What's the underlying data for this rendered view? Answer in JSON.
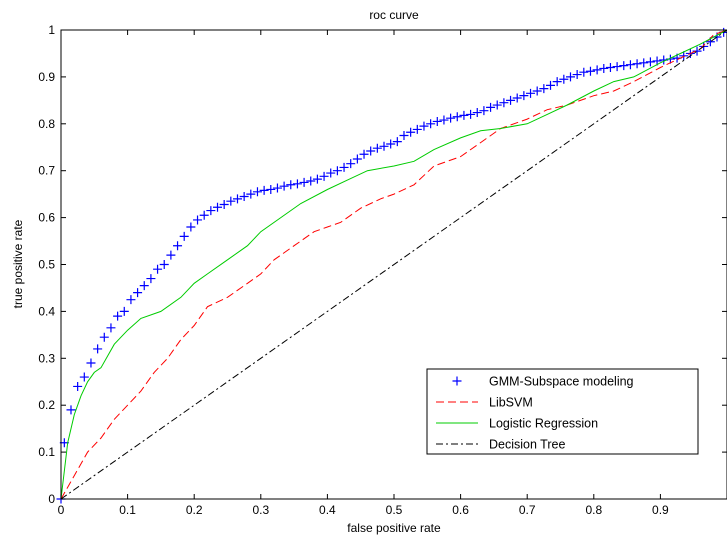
{
  "chart_data": {
    "type": "line",
    "title": "roc curve",
    "xlabel": "false positive rate",
    "ylabel": "true positive rate",
    "xlim": [
      0,
      1
    ],
    "ylim": [
      0,
      1
    ],
    "xticks": [
      "0",
      "0.1",
      "0.2",
      "0.3",
      "0.4",
      "0.5",
      "0.6",
      "0.7",
      "0.8",
      "0.9"
    ],
    "yticks": [
      "0",
      "0.1",
      "0.2",
      "0.3",
      "0.4",
      "0.5",
      "0.6",
      "0.7",
      "0.8",
      "0.9",
      "1"
    ],
    "grid": false,
    "legend_position": "bottom-right",
    "series": [
      {
        "name": "GMM-Subspace modeling",
        "color": "#0000ff",
        "marker": "plus",
        "line": "none",
        "x": [
          0,
          0.005,
          0.015,
          0.025,
          0.035,
          0.045,
          0.055,
          0.065,
          0.075,
          0.085,
          0.095,
          0.105,
          0.115,
          0.125,
          0.135,
          0.145,
          0.155,
          0.165,
          0.175,
          0.185,
          0.195,
          0.205,
          0.215,
          0.225,
          0.235,
          0.245,
          0.255,
          0.265,
          0.275,
          0.285,
          0.295,
          0.305,
          0.315,
          0.325,
          0.335,
          0.345,
          0.355,
          0.365,
          0.375,
          0.385,
          0.395,
          0.405,
          0.415,
          0.425,
          0.435,
          0.445,
          0.455,
          0.465,
          0.475,
          0.485,
          0.495,
          0.505,
          0.515,
          0.525,
          0.535,
          0.545,
          0.555,
          0.565,
          0.575,
          0.585,
          0.595,
          0.605,
          0.615,
          0.625,
          0.635,
          0.645,
          0.655,
          0.665,
          0.675,
          0.685,
          0.695,
          0.705,
          0.715,
          0.725,
          0.735,
          0.745,
          0.755,
          0.765,
          0.775,
          0.785,
          0.795,
          0.805,
          0.815,
          0.825,
          0.835,
          0.845,
          0.855,
          0.865,
          0.875,
          0.885,
          0.895,
          0.905,
          0.915,
          0.925,
          0.935,
          0.945,
          0.955,
          0.965,
          0.975,
          0.985,
          0.995
        ],
        "y": [
          0,
          0.12,
          0.19,
          0.24,
          0.26,
          0.29,
          0.32,
          0.345,
          0.365,
          0.39,
          0.4,
          0.425,
          0.44,
          0.455,
          0.47,
          0.49,
          0.5,
          0.52,
          0.54,
          0.56,
          0.58,
          0.595,
          0.605,
          0.615,
          0.622,
          0.628,
          0.635,
          0.64,
          0.645,
          0.65,
          0.655,
          0.658,
          0.66,
          0.663,
          0.667,
          0.67,
          0.672,
          0.675,
          0.678,
          0.682,
          0.688,
          0.695,
          0.7,
          0.707,
          0.715,
          0.725,
          0.735,
          0.742,
          0.748,
          0.752,
          0.757,
          0.762,
          0.775,
          0.782,
          0.788,
          0.795,
          0.8,
          0.805,
          0.808,
          0.812,
          0.815,
          0.818,
          0.82,
          0.824,
          0.828,
          0.835,
          0.84,
          0.845,
          0.85,
          0.855,
          0.86,
          0.865,
          0.87,
          0.875,
          0.882,
          0.89,
          0.895,
          0.9,
          0.905,
          0.91,
          0.912,
          0.915,
          0.918,
          0.92,
          0.922,
          0.924,
          0.926,
          0.928,
          0.93,
          0.932,
          0.934,
          0.936,
          0.938,
          0.94,
          0.945,
          0.95,
          0.955,
          0.965,
          0.975,
          0.985,
          0.995
        ]
      },
      {
        "name": "LibSVM",
        "color": "#ff0000",
        "dash": "dashed",
        "x": [
          0,
          0.02,
          0.04,
          0.06,
          0.08,
          0.1,
          0.12,
          0.14,
          0.16,
          0.18,
          0.2,
          0.22,
          0.25,
          0.28,
          0.3,
          0.32,
          0.35,
          0.38,
          0.4,
          0.42,
          0.45,
          0.48,
          0.5,
          0.53,
          0.56,
          0.6,
          0.63,
          0.66,
          0.7,
          0.73,
          0.76,
          0.8,
          0.83,
          0.86,
          0.9,
          0.93,
          0.96,
          0.98,
          1.0
        ],
        "y": [
          0,
          0.05,
          0.1,
          0.13,
          0.17,
          0.2,
          0.23,
          0.27,
          0.3,
          0.34,
          0.37,
          0.41,
          0.43,
          0.46,
          0.48,
          0.51,
          0.54,
          0.57,
          0.58,
          0.59,
          0.62,
          0.64,
          0.65,
          0.67,
          0.71,
          0.73,
          0.76,
          0.79,
          0.81,
          0.83,
          0.84,
          0.86,
          0.87,
          0.89,
          0.92,
          0.94,
          0.96,
          0.99,
          1.0
        ]
      },
      {
        "name": "Logistic Regression",
        "color": "#00cc00",
        "dash": "solid",
        "x": [
          0,
          0.01,
          0.02,
          0.03,
          0.04,
          0.05,
          0.06,
          0.08,
          0.1,
          0.12,
          0.15,
          0.18,
          0.2,
          0.22,
          0.25,
          0.28,
          0.3,
          0.33,
          0.36,
          0.4,
          0.43,
          0.46,
          0.5,
          0.53,
          0.56,
          0.6,
          0.63,
          0.66,
          0.7,
          0.73,
          0.76,
          0.8,
          0.83,
          0.86,
          0.9,
          0.93,
          0.96,
          1.0
        ],
        "y": [
          0,
          0.12,
          0.18,
          0.22,
          0.25,
          0.27,
          0.28,
          0.33,
          0.36,
          0.385,
          0.4,
          0.43,
          0.46,
          0.48,
          0.51,
          0.54,
          0.57,
          0.6,
          0.63,
          0.66,
          0.68,
          0.7,
          0.71,
          0.72,
          0.745,
          0.77,
          0.785,
          0.79,
          0.8,
          0.82,
          0.84,
          0.87,
          0.89,
          0.9,
          0.93,
          0.95,
          0.97,
          1.0
        ]
      },
      {
        "name": "Decision Tree",
        "color": "#000000",
        "dash": "dashdot",
        "x": [
          0,
          1.0
        ],
        "y": [
          0,
          1.0
        ]
      }
    ]
  }
}
